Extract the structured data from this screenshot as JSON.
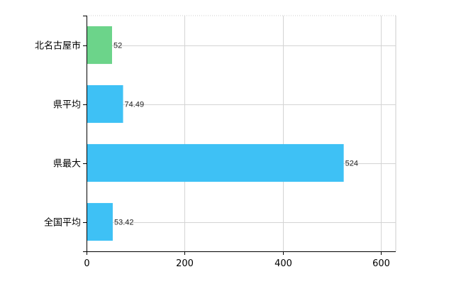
{
  "chart_data": {
    "type": "bar",
    "orientation": "horizontal",
    "categories": [
      "北名古屋市",
      "県平均",
      "県最大",
      "全国平均"
    ],
    "values": [
      52,
      74.49,
      524,
      53.42
    ],
    "value_labels": [
      "52",
      "74.49",
      "524",
      "53.42"
    ],
    "bar_colors": [
      "#6cd48a",
      "#3ec1f5",
      "#3ec1f5",
      "#3ec1f5"
    ],
    "title": "",
    "xlabel": "",
    "ylabel": "",
    "xlim": [
      0,
      630
    ],
    "xticks": [
      0,
      200,
      400,
      600
    ],
    "xtick_labels": [
      "0",
      "200",
      "400",
      "600"
    ],
    "grid": true,
    "legend": "none"
  }
}
